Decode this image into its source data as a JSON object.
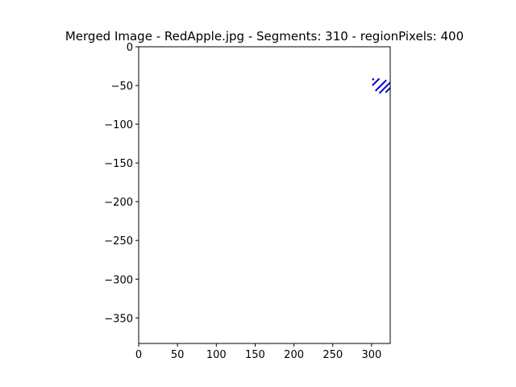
{
  "chart_data": {
    "type": "scatter",
    "title": "Merged Image - RedApple.jpg - Segments: 310 - regionPixels: 400",
    "xlabel": "",
    "ylabel": "",
    "xlim": [
      0,
      324
    ],
    "ylim": [
      -383,
      0
    ],
    "x_ticks": [
      0,
      50,
      100,
      150,
      200,
      250,
      300
    ],
    "y_ticks": [
      0,
      -50,
      -100,
      -150,
      -200,
      -250,
      -300,
      -350
    ],
    "x_tick_labels": [
      "0",
      "50",
      "100",
      "150",
      "200",
      "250",
      "300"
    ],
    "y_tick_labels": [
      "0",
      "−50",
      "−100",
      "−150",
      "−200",
      "−250",
      "−300",
      "−350"
    ],
    "grid": false,
    "series": [
      {
        "color": "#0000cc",
        "segments": [
          [
            [
              301,
              -41
            ],
            [
              303,
              -43
            ]
          ],
          [
            [
              301,
              -50
            ],
            [
              310,
              -41
            ]
          ],
          [
            [
              305,
              -57
            ],
            [
              319,
              -43
            ]
          ],
          [
            [
              310,
              -60
            ],
            [
              324,
              -46
            ]
          ],
          [
            [
              318,
              -59
            ],
            [
              324,
              -53
            ]
          ]
        ]
      }
    ]
  }
}
